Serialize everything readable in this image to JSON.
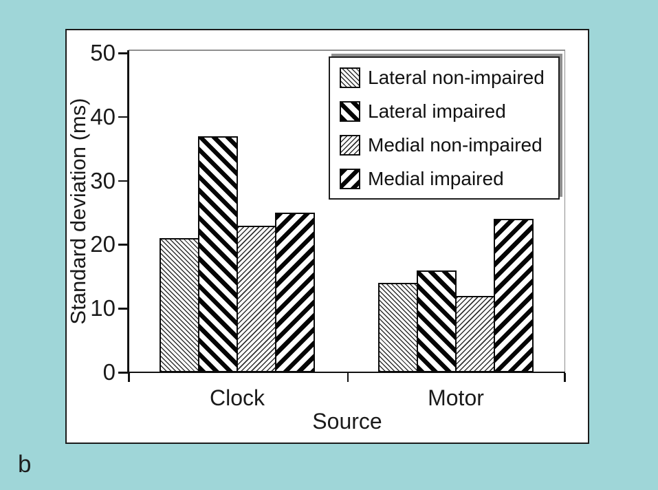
{
  "figure_label": "b",
  "colors": {
    "background": "#9fd6d8",
    "panel": "#ffffff",
    "axis": "#111111",
    "frame_gray": "#8e8e8e",
    "hatch_black": "#050505"
  },
  "chart_data": {
    "type": "bar",
    "title": "",
    "categories": [
      "Clock",
      "Motor"
    ],
    "series": [
      {
        "name": "Lateral non-impaired",
        "pattern": "thin-diagonal-backslash",
        "values": [
          21,
          14
        ]
      },
      {
        "name": "Lateral impaired",
        "pattern": "thick-diagonal-backslash",
        "values": [
          37,
          16
        ]
      },
      {
        "name": "Medial non-impaired",
        "pattern": "thin-diagonal-forwardslash",
        "values": [
          23,
          12
        ]
      },
      {
        "name": "Medial impaired",
        "pattern": "thick-diagonal-forwardslash",
        "values": [
          25,
          24
        ]
      }
    ],
    "xlabel": "Source",
    "ylabel": "Standard deviation (ms)",
    "ylim": [
      0,
      50
    ],
    "yticks": [
      0,
      10,
      20,
      30,
      40,
      50
    ],
    "legend_position": "top-right-inside",
    "grid": false
  }
}
